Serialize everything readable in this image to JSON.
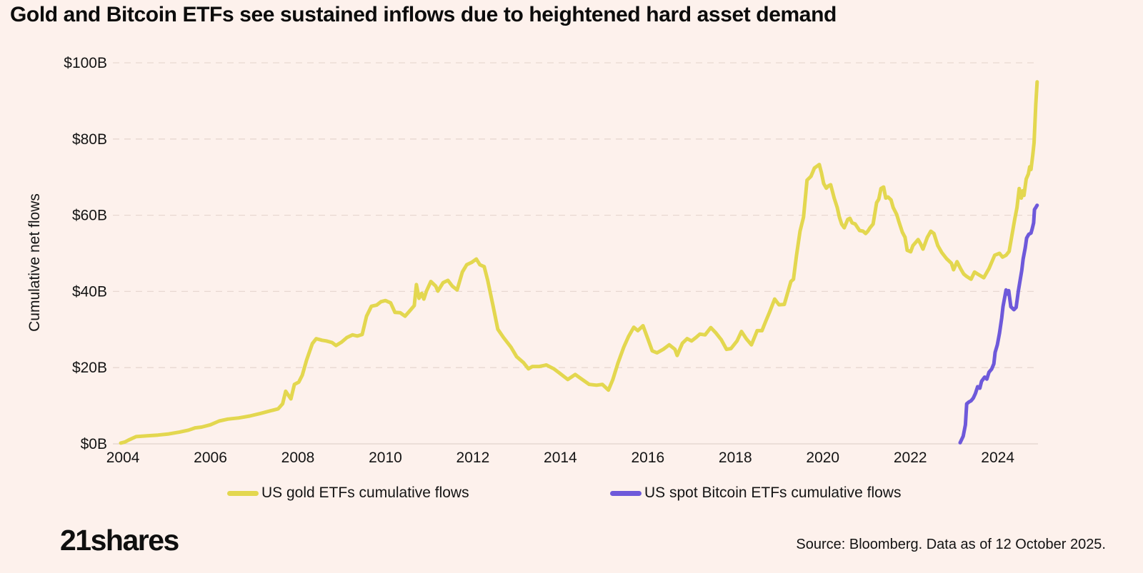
{
  "header": {
    "title": "Gold and Bitcoin ETFs see sustained inflows due to heightened hard asset demand"
  },
  "footer": {
    "logo_text": "21shares",
    "source": "Source: Bloomberg. Data as of 12 October 2025."
  },
  "colors": {
    "background": "#fdf1ec",
    "gold_line": "#e3d74f",
    "bitcoin_line": "#6e59da",
    "gridline": "#e3d2cb",
    "axis_line": "#e6d8d2",
    "text": "#141414"
  },
  "chart_data": {
    "type": "line",
    "title": "Gold and Bitcoin ETFs see sustained inflows due to heightened hard asset demand",
    "xlabel": "",
    "ylabel": "Cumulative net flows",
    "units": "USD billions",
    "xlim": [
      2003.77,
      2024.92
    ],
    "ylim": [
      0,
      100
    ],
    "grid": "horizontal-dashed",
    "legend_position": "bottom",
    "x_ticks": {
      "values": [
        2004,
        2006,
        2008,
        2010,
        2012,
        2014,
        2016,
        2018,
        2020,
        2022,
        2024
      ],
      "labels": [
        "2004",
        "2006",
        "2008",
        "2010",
        "2012",
        "2014",
        "2016",
        "2018",
        "2020",
        "2022",
        "2024"
      ]
    },
    "y_ticks": {
      "values": [
        0,
        20,
        40,
        60,
        80,
        100
      ],
      "labels": [
        "$0B",
        "$20B",
        "$40B",
        "$60B",
        "$80B",
        "$100B"
      ]
    },
    "series": [
      {
        "name": "US gold ETFs cumulative flows",
        "color": "#e3d74f",
        "points": [
          [
            2003.95,
            0.2
          ],
          [
            2004.05,
            0.5
          ],
          [
            2004.13,
            1.0
          ],
          [
            2004.3,
            1.9
          ],
          [
            2004.55,
            2.1
          ],
          [
            2004.8,
            2.3
          ],
          [
            2005.05,
            2.6
          ],
          [
            2005.3,
            3.1
          ],
          [
            2005.5,
            3.6
          ],
          [
            2005.65,
            4.2
          ],
          [
            2005.8,
            4.4
          ],
          [
            2006.0,
            5.0
          ],
          [
            2006.2,
            6.0
          ],
          [
            2006.4,
            6.5
          ],
          [
            2006.65,
            6.8
          ],
          [
            2006.9,
            7.3
          ],
          [
            2007.15,
            8.0
          ],
          [
            2007.35,
            8.6
          ],
          [
            2007.55,
            9.2
          ],
          [
            2007.65,
            10.5
          ],
          [
            2007.72,
            13.8
          ],
          [
            2007.78,
            12.8
          ],
          [
            2007.84,
            11.8
          ],
          [
            2007.92,
            15.6
          ],
          [
            2008.02,
            16.2
          ],
          [
            2008.1,
            18.0
          ],
          [
            2008.2,
            22.0
          ],
          [
            2008.33,
            26.3
          ],
          [
            2008.42,
            27.6
          ],
          [
            2008.55,
            27.2
          ],
          [
            2008.65,
            27.0
          ],
          [
            2008.78,
            26.6
          ],
          [
            2008.87,
            25.8
          ],
          [
            2009.0,
            26.7
          ],
          [
            2009.12,
            27.9
          ],
          [
            2009.25,
            28.6
          ],
          [
            2009.36,
            28.3
          ],
          [
            2009.47,
            28.7
          ],
          [
            2009.57,
            33.5
          ],
          [
            2009.68,
            36.1
          ],
          [
            2009.8,
            36.4
          ],
          [
            2009.9,
            37.3
          ],
          [
            2010.0,
            37.6
          ],
          [
            2010.12,
            37.0
          ],
          [
            2010.22,
            34.5
          ],
          [
            2010.34,
            34.4
          ],
          [
            2010.45,
            33.5
          ],
          [
            2010.55,
            34.8
          ],
          [
            2010.66,
            36.3
          ],
          [
            2010.71,
            41.8
          ],
          [
            2010.77,
            38.2
          ],
          [
            2010.83,
            39.5
          ],
          [
            2010.88,
            38.0
          ],
          [
            2010.94,
            40.1
          ],
          [
            2011.04,
            42.6
          ],
          [
            2011.15,
            41.4
          ],
          [
            2011.2,
            40.1
          ],
          [
            2011.32,
            42.3
          ],
          [
            2011.43,
            42.9
          ],
          [
            2011.53,
            41.4
          ],
          [
            2011.64,
            40.4
          ],
          [
            2011.76,
            45.1
          ],
          [
            2011.86,
            47.0
          ],
          [
            2011.97,
            47.6
          ],
          [
            2012.08,
            48.5
          ],
          [
            2012.16,
            47.0
          ],
          [
            2012.26,
            46.5
          ],
          [
            2012.34,
            42.9
          ],
          [
            2012.46,
            36.3
          ],
          [
            2012.57,
            30.1
          ],
          [
            2012.7,
            27.9
          ],
          [
            2012.87,
            25.4
          ],
          [
            2013.0,
            22.9
          ],
          [
            2013.16,
            21.3
          ],
          [
            2013.27,
            19.7
          ],
          [
            2013.36,
            20.3
          ],
          [
            2013.52,
            20.3
          ],
          [
            2013.68,
            20.7
          ],
          [
            2013.85,
            19.7
          ],
          [
            2014.0,
            18.4
          ],
          [
            2014.17,
            16.9
          ],
          [
            2014.34,
            18.2
          ],
          [
            2014.5,
            16.9
          ],
          [
            2014.66,
            15.6
          ],
          [
            2014.83,
            15.4
          ],
          [
            2014.96,
            15.6
          ],
          [
            2015.1,
            14.1
          ],
          [
            2015.2,
            16.9
          ],
          [
            2015.32,
            21.3
          ],
          [
            2015.45,
            25.4
          ],
          [
            2015.56,
            28.2
          ],
          [
            2015.68,
            30.6
          ],
          [
            2015.77,
            29.7
          ],
          [
            2015.89,
            31.0
          ],
          [
            2016.0,
            27.6
          ],
          [
            2016.1,
            24.4
          ],
          [
            2016.21,
            23.9
          ],
          [
            2016.35,
            24.8
          ],
          [
            2016.49,
            26.0
          ],
          [
            2016.62,
            24.8
          ],
          [
            2016.67,
            23.2
          ],
          [
            2016.79,
            26.4
          ],
          [
            2016.9,
            27.6
          ],
          [
            2017.0,
            27.0
          ],
          [
            2017.11,
            28.0
          ],
          [
            2017.19,
            28.8
          ],
          [
            2017.31,
            28.6
          ],
          [
            2017.44,
            30.5
          ],
          [
            2017.55,
            29.2
          ],
          [
            2017.68,
            27.3
          ],
          [
            2017.8,
            24.8
          ],
          [
            2017.9,
            25.0
          ],
          [
            2018.04,
            27.0
          ],
          [
            2018.14,
            29.5
          ],
          [
            2018.25,
            27.6
          ],
          [
            2018.37,
            26.0
          ],
          [
            2018.5,
            29.7
          ],
          [
            2018.61,
            29.7
          ],
          [
            2018.7,
            32.3
          ],
          [
            2018.78,
            34.5
          ],
          [
            2018.9,
            38.0
          ],
          [
            2019.0,
            36.5
          ],
          [
            2019.12,
            36.6
          ],
          [
            2019.27,
            42.6
          ],
          [
            2019.33,
            43.2
          ],
          [
            2019.4,
            49.5
          ],
          [
            2019.48,
            55.8
          ],
          [
            2019.56,
            59.5
          ],
          [
            2019.64,
            69.2
          ],
          [
            2019.73,
            70.2
          ],
          [
            2019.81,
            72.4
          ],
          [
            2019.92,
            73.3
          ],
          [
            2019.97,
            71.1
          ],
          [
            2020.02,
            68.3
          ],
          [
            2020.08,
            67.1
          ],
          [
            2020.13,
            67.7
          ],
          [
            2020.18,
            68.0
          ],
          [
            2020.26,
            64.5
          ],
          [
            2020.33,
            62.0
          ],
          [
            2020.38,
            59.5
          ],
          [
            2020.43,
            57.7
          ],
          [
            2020.49,
            56.7
          ],
          [
            2020.57,
            58.9
          ],
          [
            2020.62,
            59.2
          ],
          [
            2020.67,
            58.0
          ],
          [
            2020.74,
            57.7
          ],
          [
            2020.84,
            56.0
          ],
          [
            2020.92,
            55.8
          ],
          [
            2020.98,
            55.2
          ],
          [
            2021.03,
            55.8
          ],
          [
            2021.08,
            56.7
          ],
          [
            2021.15,
            57.7
          ],
          [
            2021.23,
            63.3
          ],
          [
            2021.28,
            64.2
          ],
          [
            2021.33,
            67.0
          ],
          [
            2021.39,
            67.4
          ],
          [
            2021.44,
            64.5
          ],
          [
            2021.49,
            64.8
          ],
          [
            2021.56,
            64.0
          ],
          [
            2021.61,
            62.0
          ],
          [
            2021.69,
            60.2
          ],
          [
            2021.74,
            58.3
          ],
          [
            2021.82,
            55.5
          ],
          [
            2021.88,
            54.2
          ],
          [
            2021.93,
            50.8
          ],
          [
            2022.01,
            50.4
          ],
          [
            2022.06,
            52.0
          ],
          [
            2022.18,
            53.6
          ],
          [
            2022.23,
            52.6
          ],
          [
            2022.29,
            51.1
          ],
          [
            2022.34,
            52.6
          ],
          [
            2022.39,
            54.2
          ],
          [
            2022.47,
            55.8
          ],
          [
            2022.54,
            55.2
          ],
          [
            2022.63,
            52.0
          ],
          [
            2022.72,
            50.2
          ],
          [
            2022.83,
            48.6
          ],
          [
            2022.94,
            47.4
          ],
          [
            2022.99,
            45.7
          ],
          [
            2023.07,
            47.8
          ],
          [
            2023.15,
            46.0
          ],
          [
            2023.22,
            44.6
          ],
          [
            2023.28,
            44.0
          ],
          [
            2023.39,
            43.2
          ],
          [
            2023.47,
            45.1
          ],
          [
            2023.55,
            44.5
          ],
          [
            2023.68,
            43.6
          ],
          [
            2023.8,
            46.0
          ],
          [
            2023.93,
            49.5
          ],
          [
            2024.04,
            50.0
          ],
          [
            2024.11,
            49.0
          ],
          [
            2024.19,
            49.5
          ],
          [
            2024.26,
            50.5
          ],
          [
            2024.32,
            54.5
          ],
          [
            2024.39,
            59.0
          ],
          [
            2024.44,
            62.0
          ],
          [
            2024.49,
            67.0
          ],
          [
            2024.54,
            64.5
          ],
          [
            2024.57,
            66.4
          ],
          [
            2024.6,
            65.2
          ],
          [
            2024.65,
            69.5
          ],
          [
            2024.7,
            70.8
          ],
          [
            2024.73,
            72.7
          ],
          [
            2024.76,
            72.0
          ],
          [
            2024.8,
            75.8
          ],
          [
            2024.83,
            79.0
          ],
          [
            2024.85,
            84.0
          ],
          [
            2024.87,
            89.0
          ],
          [
            2024.9,
            95.0
          ]
        ]
      },
      {
        "name": "US spot Bitcoin ETFs cumulative flows",
        "color": "#6e59da",
        "points": [
          [
            2023.14,
            0.3
          ],
          [
            2023.21,
            2.0
          ],
          [
            2023.26,
            5.0
          ],
          [
            2023.29,
            10.5
          ],
          [
            2023.34,
            11.0
          ],
          [
            2023.39,
            11.3
          ],
          [
            2023.44,
            12.0
          ],
          [
            2023.49,
            13.2
          ],
          [
            2023.54,
            15.0
          ],
          [
            2023.59,
            14.6
          ],
          [
            2023.63,
            16.4
          ],
          [
            2023.7,
            17.5
          ],
          [
            2023.75,
            17.0
          ],
          [
            2023.8,
            18.8
          ],
          [
            2023.86,
            19.6
          ],
          [
            2023.91,
            21.0
          ],
          [
            2023.94,
            24.0
          ],
          [
            2023.99,
            26.0
          ],
          [
            2024.04,
            29.0
          ],
          [
            2024.09,
            33.0
          ],
          [
            2024.12,
            36.0
          ],
          [
            2024.19,
            40.4
          ],
          [
            2024.22,
            39.3
          ],
          [
            2024.25,
            40.2
          ],
          [
            2024.3,
            36.0
          ],
          [
            2024.37,
            35.2
          ],
          [
            2024.42,
            35.8
          ],
          [
            2024.47,
            40.0
          ],
          [
            2024.52,
            43.5
          ],
          [
            2024.55,
            45.5
          ],
          [
            2024.58,
            48.5
          ],
          [
            2024.63,
            51.5
          ],
          [
            2024.66,
            54.0
          ],
          [
            2024.71,
            55.0
          ],
          [
            2024.76,
            55.3
          ],
          [
            2024.79,
            56.5
          ],
          [
            2024.82,
            58.0
          ],
          [
            2024.84,
            61.5
          ],
          [
            2024.87,
            62.0
          ],
          [
            2024.9,
            62.6
          ]
        ]
      }
    ]
  }
}
